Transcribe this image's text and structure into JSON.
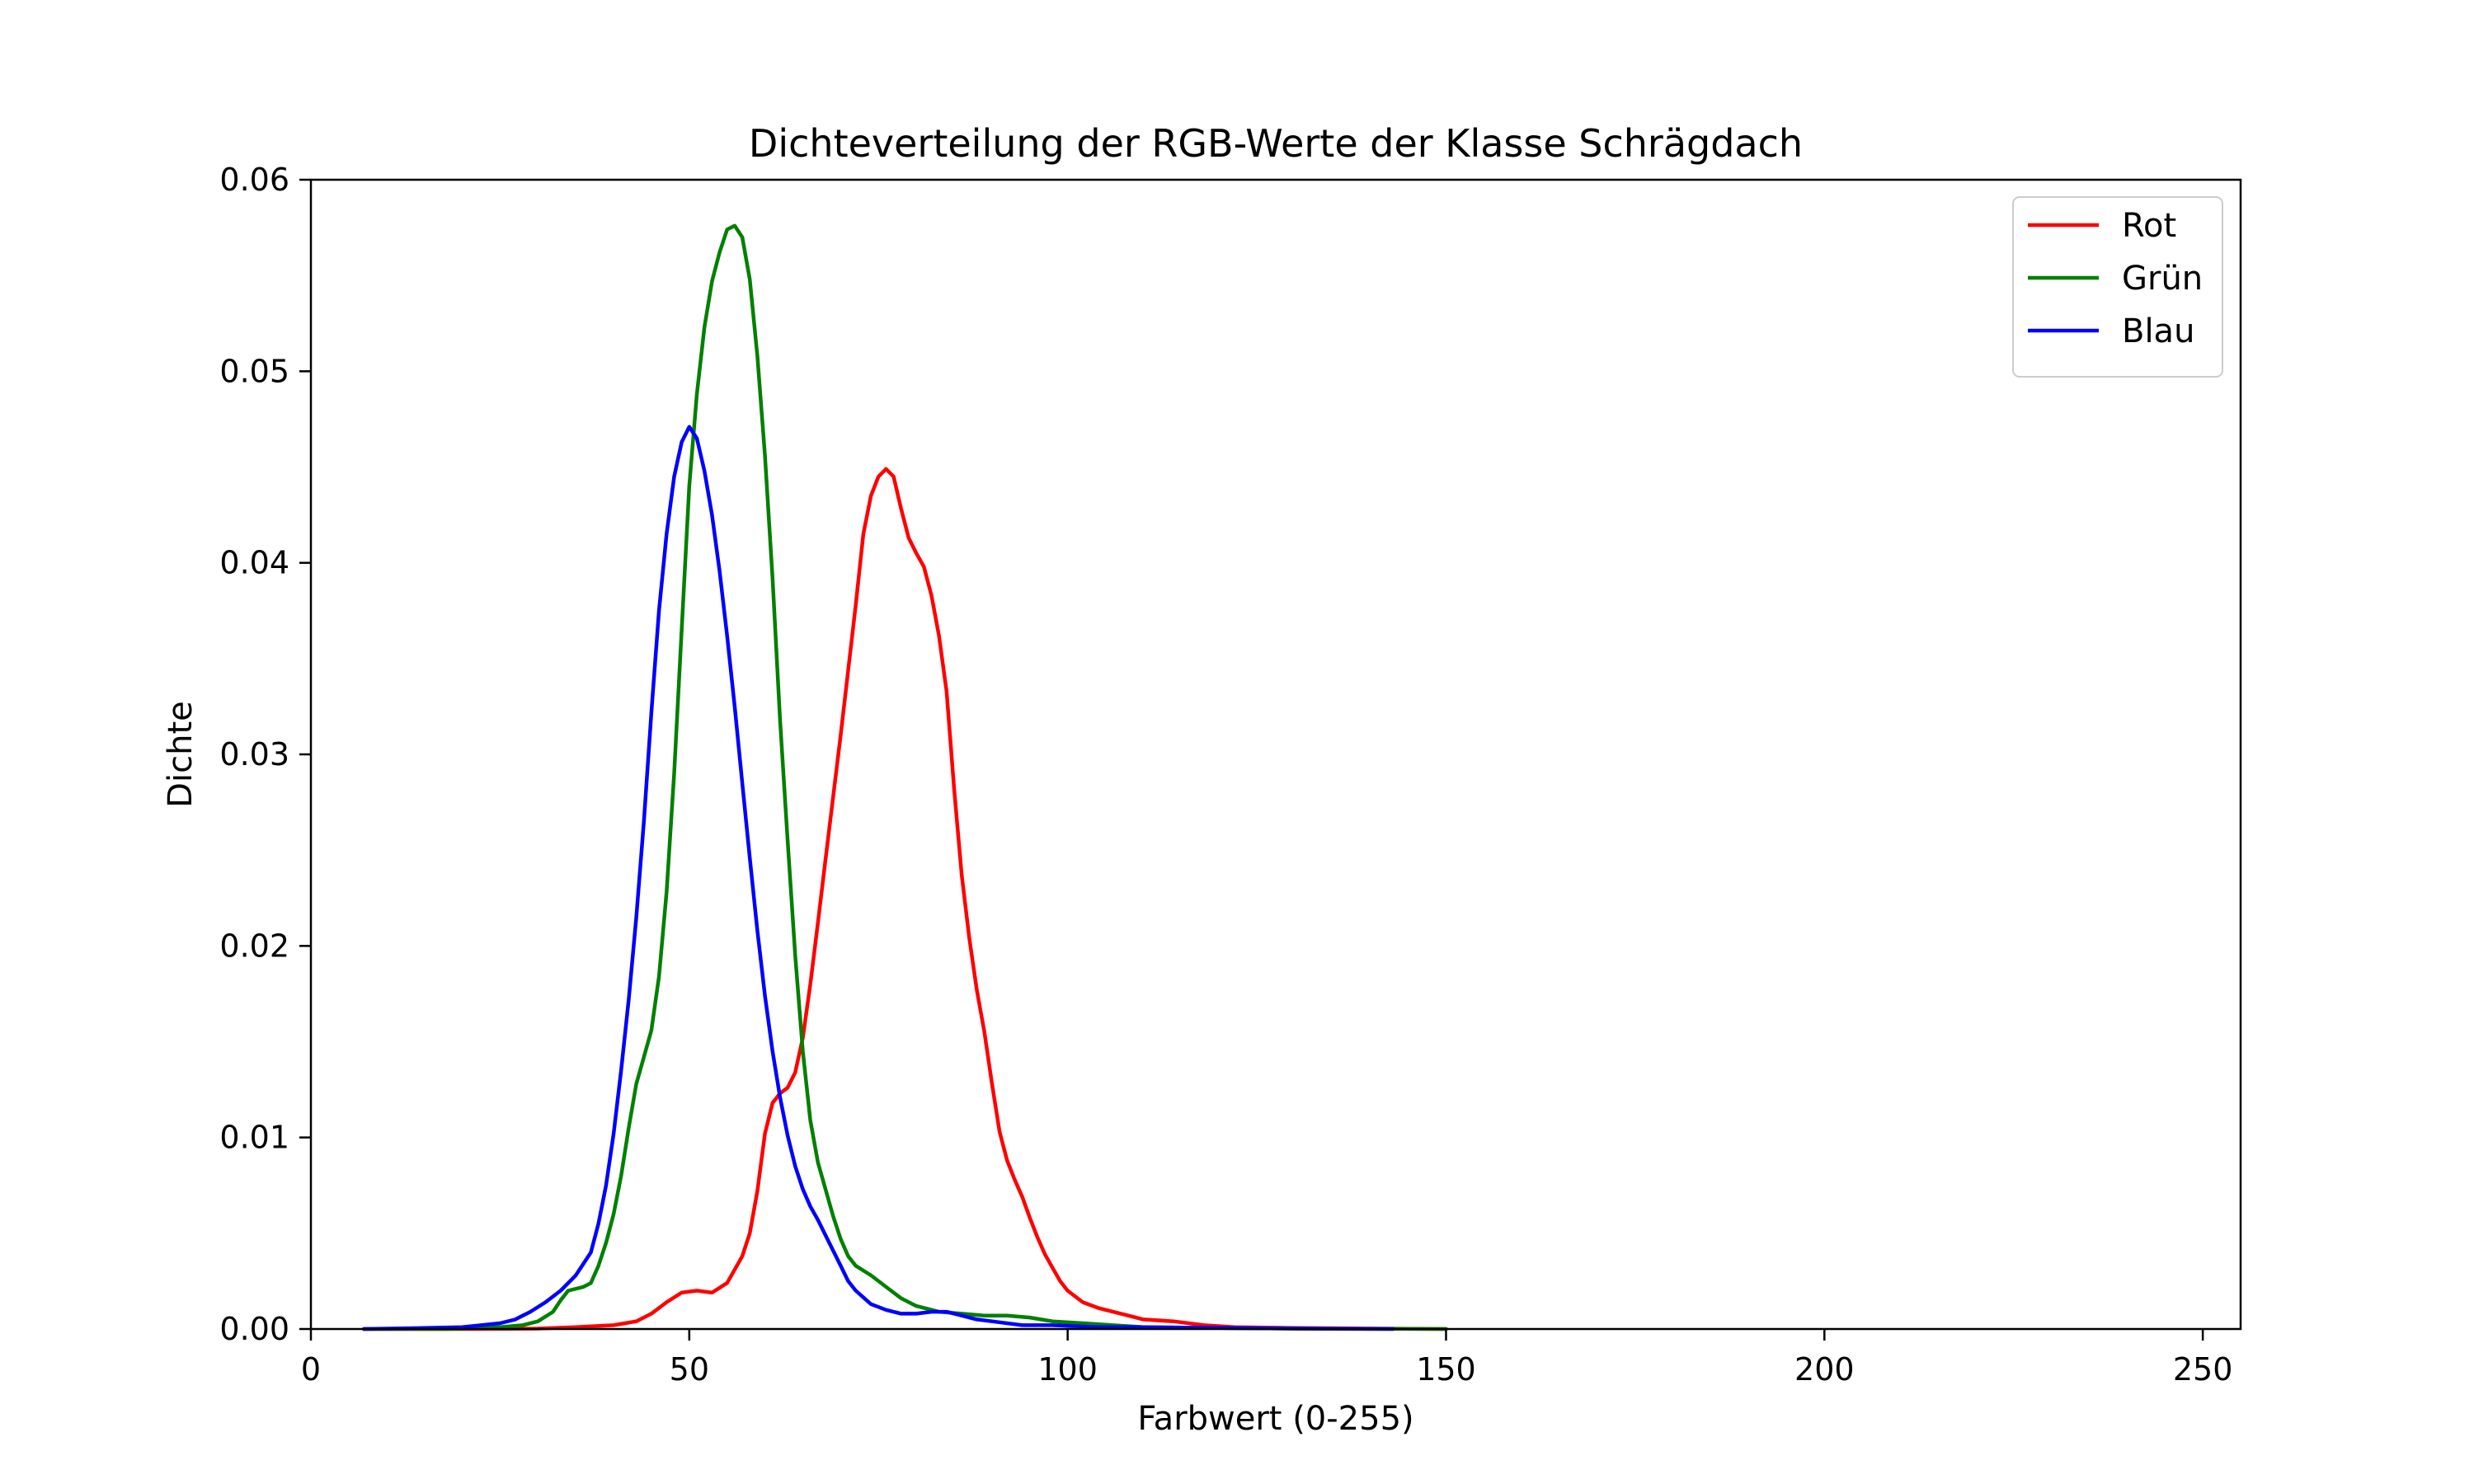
{
  "chart_data": {
    "type": "line",
    "title": "Dichteverteilung der RGB-Werte der Klasse Schrägdach",
    "xlabel": "Farbwert (0-255)",
    "ylabel": "Dichte",
    "xlim": [
      0,
      255
    ],
    "ylim": [
      0,
      0.06
    ],
    "xticks": [
      0,
      50,
      100,
      150,
      200,
      250
    ],
    "yticks": [
      0.0,
      0.01,
      0.02,
      0.03,
      0.04,
      0.05,
      0.06
    ],
    "xtick_labels": [
      "0",
      "50",
      "100",
      "150",
      "200",
      "250"
    ],
    "ytick_labels": [
      "0.00",
      "0.01",
      "0.02",
      "0.03",
      "0.04",
      "0.05",
      "0.06"
    ],
    "grid": false,
    "legend_position": "top-right",
    "series": [
      {
        "name": "Rot",
        "color": "#ff0000",
        "points": [
          [
            7,
            0
          ],
          [
            20,
            0
          ],
          [
            30,
            2e-05
          ],
          [
            35,
            0.0001
          ],
          [
            40,
            0.0002
          ],
          [
            43,
            0.0004
          ],
          [
            45,
            0.0008
          ],
          [
            47,
            0.0014
          ],
          [
            49,
            0.0019
          ],
          [
            51,
            0.002
          ],
          [
            53,
            0.0019
          ],
          [
            55,
            0.0024
          ],
          [
            57,
            0.0038
          ],
          [
            58,
            0.005
          ],
          [
            59,
            0.0072
          ],
          [
            60,
            0.0102
          ],
          [
            61,
            0.0118
          ],
          [
            62,
            0.0123
          ],
          [
            63,
            0.0126
          ],
          [
            64,
            0.0134
          ],
          [
            65,
            0.0152
          ],
          [
            66,
            0.018
          ],
          [
            67,
            0.0212
          ],
          [
            68,
            0.0245
          ],
          [
            70,
            0.031
          ],
          [
            72,
            0.0378
          ],
          [
            73,
            0.0415
          ],
          [
            74,
            0.0435
          ],
          [
            75,
            0.0445
          ],
          [
            76,
            0.0449
          ],
          [
            77,
            0.0445
          ],
          [
            78,
            0.0428
          ],
          [
            79,
            0.0413
          ],
          [
            80,
            0.0405
          ],
          [
            81,
            0.0398
          ],
          [
            82,
            0.0383
          ],
          [
            83,
            0.0362
          ],
          [
            84,
            0.0333
          ],
          [
            85,
            0.0282
          ],
          [
            86,
            0.0237
          ],
          [
            87,
            0.0204
          ],
          [
            88,
            0.0177
          ],
          [
            89,
            0.0155
          ],
          [
            90,
            0.0128
          ],
          [
            91,
            0.0103
          ],
          [
            92,
            0.0088
          ],
          [
            93,
            0.0078
          ],
          [
            94,
            0.0069
          ],
          [
            95,
            0.0058
          ],
          [
            96,
            0.0048
          ],
          [
            97,
            0.0039
          ],
          [
            98,
            0.0032
          ],
          [
            99,
            0.0025
          ],
          [
            100,
            0.002
          ],
          [
            102,
            0.0014
          ],
          [
            104,
            0.0011
          ],
          [
            106,
            0.0009
          ],
          [
            108,
            0.0007
          ],
          [
            110,
            0.0005
          ],
          [
            114,
            0.0004
          ],
          [
            118,
            0.0002
          ],
          [
            122,
            0.0001
          ],
          [
            130,
            5e-05
          ],
          [
            150,
            0
          ]
        ]
      },
      {
        "name": "Grün",
        "color": "#008000",
        "points": [
          [
            7,
            0
          ],
          [
            18,
            0
          ],
          [
            25,
            0.0001
          ],
          [
            28,
            0.0002
          ],
          [
            30,
            0.0004
          ],
          [
            32,
            0.0009
          ],
          [
            33,
            0.0015
          ],
          [
            34,
            0.002
          ],
          [
            36,
            0.0022
          ],
          [
            37,
            0.0024
          ],
          [
            38,
            0.0033
          ],
          [
            39,
            0.0045
          ],
          [
            40,
            0.006
          ],
          [
            41,
            0.008
          ],
          [
            42,
            0.0105
          ],
          [
            43,
            0.0128
          ],
          [
            44,
            0.0142
          ],
          [
            45,
            0.0156
          ],
          [
            46,
            0.0184
          ],
          [
            47,
            0.0228
          ],
          [
            48,
            0.029
          ],
          [
            49,
            0.0365
          ],
          [
            50,
            0.044
          ],
          [
            51,
            0.0488
          ],
          [
            52,
            0.0523
          ],
          [
            53,
            0.0547
          ],
          [
            54,
            0.0562
          ],
          [
            55,
            0.0574
          ],
          [
            56,
            0.0576
          ],
          [
            57,
            0.057
          ],
          [
            58,
            0.0548
          ],
          [
            59,
            0.0508
          ],
          [
            60,
            0.0456
          ],
          [
            61,
            0.0392
          ],
          [
            62,
            0.0318
          ],
          [
            63,
            0.0255
          ],
          [
            64,
            0.0195
          ],
          [
            65,
            0.0145
          ],
          [
            66,
            0.0109
          ],
          [
            67,
            0.0087
          ],
          [
            68,
            0.0073
          ],
          [
            69,
            0.0059
          ],
          [
            70,
            0.0047
          ],
          [
            71,
            0.0038
          ],
          [
            72,
            0.0033
          ],
          [
            74,
            0.0028
          ],
          [
            76,
            0.0022
          ],
          [
            78,
            0.0016
          ],
          [
            80,
            0.0012
          ],
          [
            83,
            0.0009
          ],
          [
            86,
            0.0008
          ],
          [
            89,
            0.0007
          ],
          [
            92,
            0.0007
          ],
          [
            95,
            0.0006
          ],
          [
            98,
            0.0004
          ],
          [
            102,
            0.0003
          ],
          [
            106,
            0.0002
          ],
          [
            110,
            0.0001
          ],
          [
            120,
            5e-05
          ],
          [
            130,
            2e-05
          ],
          [
            150,
            0
          ]
        ]
      },
      {
        "name": "Blau",
        "color": "#0000ff",
        "points": [
          [
            7,
            0
          ],
          [
            15,
            5e-05
          ],
          [
            20,
            0.0001
          ],
          [
            25,
            0.0003
          ],
          [
            27,
            0.0005
          ],
          [
            29,
            0.0009
          ],
          [
            31,
            0.0014
          ],
          [
            33,
            0.002
          ],
          [
            35,
            0.0028
          ],
          [
            37,
            0.004
          ],
          [
            38,
            0.0055
          ],
          [
            39,
            0.0075
          ],
          [
            40,
            0.0102
          ],
          [
            41,
            0.0135
          ],
          [
            42,
            0.0172
          ],
          [
            43,
            0.0215
          ],
          [
            44,
            0.0265
          ],
          [
            45,
            0.0322
          ],
          [
            46,
            0.0375
          ],
          [
            47,
            0.0415
          ],
          [
            48,
            0.0445
          ],
          [
            49,
            0.0463
          ],
          [
            50,
            0.0471
          ],
          [
            51,
            0.0465
          ],
          [
            52,
            0.0448
          ],
          [
            53,
            0.0425
          ],
          [
            54,
            0.0396
          ],
          [
            55,
            0.0362
          ],
          [
            56,
            0.0325
          ],
          [
            57,
            0.0285
          ],
          [
            58,
            0.0246
          ],
          [
            59,
            0.0208
          ],
          [
            60,
            0.0174
          ],
          [
            61,
            0.0145
          ],
          [
            62,
            0.0121
          ],
          [
            63,
            0.0101
          ],
          [
            64,
            0.0085
          ],
          [
            65,
            0.0073
          ],
          [
            66,
            0.0064
          ],
          [
            67,
            0.0057
          ],
          [
            68,
            0.0049
          ],
          [
            69,
            0.0041
          ],
          [
            70,
            0.0033
          ],
          [
            71,
            0.0025
          ],
          [
            72,
            0.002
          ],
          [
            74,
            0.0013
          ],
          [
            76,
            0.001
          ],
          [
            78,
            0.0008
          ],
          [
            80,
            0.0008
          ],
          [
            82,
            0.0009
          ],
          [
            84,
            0.0009
          ],
          [
            86,
            0.0007
          ],
          [
            88,
            0.0005
          ],
          [
            90,
            0.0004
          ],
          [
            94,
            0.0002
          ],
          [
            98,
            0.0002
          ],
          [
            104,
            0.0001
          ],
          [
            110,
            0.0001
          ],
          [
            120,
            5e-05
          ],
          [
            130,
            2e-05
          ],
          [
            143,
            0
          ]
        ]
      }
    ]
  }
}
